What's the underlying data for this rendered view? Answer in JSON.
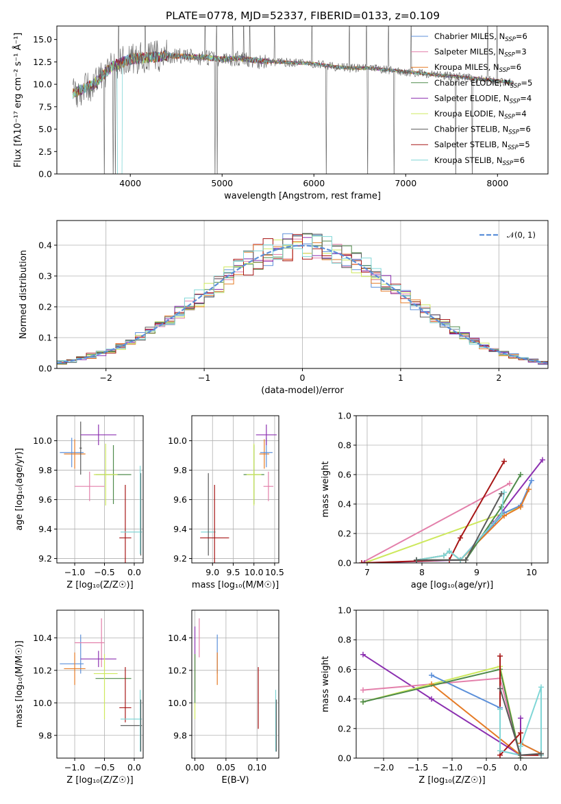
{
  "figure_title": "PLATE=0778, MJD=52337, FIBERID=0133, z=0.109",
  "colors": {
    "Chabrier MILES": "#5b8fd9",
    "Salpeter MILES": "#e37faa",
    "Kroupa MILES": "#e57b26",
    "Chabrier ELODIE": "#4e8a4a",
    "Salpeter ELODIE": "#8b2fb0",
    "Kroupa ELODIE": "#cde85c",
    "Chabrier STELIB": "#5a5a5a",
    "Salpeter STELIB": "#a71616",
    "Kroupa STELIB": "#7fd6d6"
  },
  "chart_data": [
    {
      "id": "spectrum",
      "type": "line",
      "title": "PLATE=0778, MJD=52337, FIBERID=0133, z=0.109",
      "xlabel": "wavelength [Angstrom, rest frame]",
      "ylabel": "Flux [fλ10⁻¹⁷ erg cm⁻² s⁻¹ Å⁻¹]",
      "xlim": [
        3200,
        8550
      ],
      "ylim": [
        0,
        16.5
      ],
      "xticks": [
        4000,
        5000,
        6000,
        7000,
        8000
      ],
      "yticks": [
        0.0,
        2.5,
        5.0,
        7.5,
        10.0,
        12.5,
        15.0
      ],
      "grid": false,
      "legend_position": "upper-right",
      "data_range_x": [
        3375,
        8180
      ],
      "series_mean_profile": {
        "x": [
          3375,
          3600,
          3800,
          4000,
          4200,
          4400,
          4600,
          4800,
          5000,
          5200,
          5400,
          5600,
          5800,
          6000,
          6200,
          6400,
          6600,
          6800,
          7000,
          7200,
          7400,
          7600,
          7800,
          8000,
          8180
        ],
        "y": [
          9.0,
          10.0,
          12.0,
          12.8,
          13.0,
          13.2,
          13.1,
          13.0,
          12.8,
          12.9,
          12.6,
          12.5,
          12.4,
          12.3,
          12.0,
          11.8,
          11.8,
          11.6,
          11.4,
          11.2,
          11.0,
          10.8,
          10.6,
          10.4,
          10.2
        ]
      },
      "legend": [
        {
          "model": "Chabrier MILES",
          "label": "Chabrier MILES, N",
          "sub": "SSP",
          "suffix": "=6"
        },
        {
          "model": "Salpeter MILES",
          "label": "Salpeter MILES, N",
          "sub": "SSP",
          "suffix": "=3"
        },
        {
          "model": "Kroupa MILES",
          "label": "Kroupa MILES, N",
          "sub": "SSP",
          "suffix": "=6"
        },
        {
          "model": "Chabrier ELODIE",
          "label": "Chabrier ELODIE, N",
          "sub": "SSP",
          "suffix": "=5"
        },
        {
          "model": "Salpeter ELODIE",
          "label": "Salpeter ELODIE, N",
          "sub": "SSP",
          "suffix": "=4"
        },
        {
          "model": "Kroupa ELODIE",
          "label": "Kroupa ELODIE, N",
          "sub": "SSP",
          "suffix": "=4"
        },
        {
          "model": "Chabrier STELIB",
          "label": "Chabrier STELIB, N",
          "sub": "SSP",
          "suffix": "=6"
        },
        {
          "model": "Salpeter STELIB",
          "label": "Salpeter STELIB, N",
          "sub": "SSP",
          "suffix": "=5"
        },
        {
          "model": "Kroupa STELIB",
          "label": "Kroupa STELIB, N",
          "sub": "SSP",
          "suffix": "=6"
        }
      ]
    },
    {
      "id": "residuals",
      "type": "step",
      "xlabel": "(data-model)/error",
      "ylabel": "Normed distribution",
      "xlim": [
        -2.5,
        2.5
      ],
      "ylim": [
        0,
        0.48
      ],
      "xticks": [
        -2,
        -1,
        0,
        1,
        2
      ],
      "yticks": [
        0.0,
        0.1,
        0.2,
        0.3,
        0.4
      ],
      "grid": true,
      "legend_position": "upper-right",
      "gaussian_label": "𝒩(0, 1)",
      "gaussian_color": "#5b8fd9",
      "bin_width": 0.1
    },
    {
      "id": "age-Z",
      "type": "errorbar",
      "xlabel": "Z [log₁₀(Z/Z☉)]",
      "ylabel": "age  [log₁₀(age/yr)]",
      "xlim": [
        -1.3,
        0.15
      ],
      "ylim": [
        9.17,
        10.17
      ],
      "xticks": [
        -1.0,
        -0.5,
        0.0
      ],
      "yticks": [
        9.2,
        9.4,
        9.6,
        9.8,
        10.0
      ],
      "grid": true,
      "points": [
        {
          "model": "Chabrier MILES",
          "x": -1.05,
          "xerr": 0.2,
          "y": 9.92,
          "yerr": 0.1
        },
        {
          "model": "Kroupa MILES",
          "x": -1.0,
          "xerr": 0.18,
          "y": 9.91,
          "yerr": 0.1
        },
        {
          "model": "Salpeter MILES",
          "x": -0.75,
          "xerr": 0.25,
          "y": 9.69,
          "yerr": 0.1
        },
        {
          "model": "Chabrier STELIB",
          "x": -0.9,
          "xerr": 0.02,
          "y": 9.95,
          "yerr": 0.18
        },
        {
          "model": "Salpeter ELODIE",
          "x": -0.6,
          "xerr": 0.3,
          "y": 10.04,
          "yerr": 0.07
        },
        {
          "model": "Chabrier ELODIE",
          "x": -0.35,
          "xerr": 0.3,
          "y": 9.77,
          "yerr": 0.2
        },
        {
          "model": "Kroupa ELODIE",
          "x": -0.48,
          "xerr": 0.2,
          "y": 9.77,
          "yerr": 0.21
        },
        {
          "model": "Salpeter STELIB",
          "x": -0.15,
          "xerr": 0.1,
          "y": 9.34,
          "yerr": 0.36
        },
        {
          "model": "Kroupa STELIB",
          "x": -0.05,
          "xerr": 0.18,
          "y": 9.38,
          "yerr": 0.0
        },
        {
          "model": "Chabrier STELIB",
          "x": 0.11,
          "xerr": 0.0,
          "y": 9.5,
          "yerr": 0.28
        },
        {
          "model": "Kroupa STELIB",
          "x": 0.1,
          "xerr": 0.0,
          "y": 9.53,
          "yerr": 0.3
        }
      ]
    },
    {
      "id": "age-mass",
      "type": "errorbar",
      "xlabel": "mass [log₁₀(M/M☉)]",
      "ylabel": "",
      "xlim": [
        8.5,
        10.6
      ],
      "ylim": [
        9.17,
        10.17
      ],
      "xticks": [
        9.0,
        9.5,
        10.0,
        10.5
      ],
      "yticks": [
        9.2,
        9.4,
        9.6,
        9.8,
        10.0
      ],
      "grid": true,
      "points": [
        {
          "model": "Kroupa STELIB",
          "x": 8.9,
          "xerr": 0.18,
          "y": 9.38,
          "yerr": 0.0
        },
        {
          "model": "Chabrier STELIB",
          "x": 8.9,
          "xerr": 0.0,
          "y": 9.5,
          "yerr": 0.28
        },
        {
          "model": "Salpeter STELIB",
          "x": 9.05,
          "xerr": 0.35,
          "y": 9.34,
          "yerr": 0.36
        },
        {
          "model": "Chabrier ELODIE",
          "x": 10.0,
          "xerr": 0.25,
          "y": 9.77,
          "yerr": 0.2
        },
        {
          "model": "Kroupa ELODIE",
          "x": 10.0,
          "xerr": 0.18,
          "y": 9.77,
          "yerr": 0.21
        },
        {
          "model": "Kroupa MILES",
          "x": 10.25,
          "xerr": 0.12,
          "y": 9.91,
          "yerr": 0.1
        },
        {
          "model": "Chabrier MILES",
          "x": 10.3,
          "xerr": 0.15,
          "y": 9.92,
          "yerr": 0.1
        },
        {
          "model": "Salpeter ELODIE",
          "x": 10.3,
          "xerr": 0.25,
          "y": 10.04,
          "yerr": 0.07
        },
        {
          "model": "Salpeter MILES",
          "x": 10.35,
          "xerr": 0.12,
          "y": 9.69,
          "yerr": 0.1
        }
      ]
    },
    {
      "id": "massweight-age",
      "type": "line",
      "xlabel": "age  [log₁₀(age/yr)]",
      "ylabel": "mass weight",
      "xlim": [
        6.8,
        10.3
      ],
      "ylim": [
        0,
        1.0
      ],
      "xticks": [
        7,
        8,
        9,
        10
      ],
      "yticks": [
        0.0,
        0.2,
        0.4,
        0.6,
        0.8,
        1.0
      ],
      "grid": true,
      "series": [
        {
          "model": "Salpeter MILES",
          "x": [
            6.9,
            9.6
          ],
          "y": [
            0.0,
            0.54
          ]
        },
        {
          "model": "Kroupa ELODIE",
          "x": [
            6.95,
            9.8
          ],
          "y": [
            0.0,
            0.38
          ]
        },
        {
          "model": "Salpeter ELODIE",
          "x": [
            6.95,
            8.7,
            9.3,
            10.2
          ],
          "y": [
            0.0,
            0.02,
            0.27,
            0.7
          ]
        },
        {
          "model": "Salpeter STELIB",
          "x": [
            6.9,
            8.5,
            8.7,
            9.5
          ],
          "y": [
            0.0,
            0.02,
            0.17,
            0.69
          ]
        },
        {
          "model": "Chabrier MILES",
          "x": [
            7.9,
            8.4,
            8.5,
            8.7,
            9.5,
            9.8,
            10.0
          ],
          "y": [
            0.02,
            0.05,
            0.08,
            0.02,
            0.34,
            0.39,
            0.56
          ]
        },
        {
          "model": "Kroupa MILES",
          "x": [
            7.9,
            8.4,
            8.5,
            8.7,
            9.5,
            9.8,
            9.95
          ],
          "y": [
            0.02,
            0.05,
            0.08,
            0.02,
            0.32,
            0.38,
            0.5
          ]
        },
        {
          "model": "Chabrier ELODIE",
          "x": [
            7.9,
            8.8,
            9.45,
            9.8
          ],
          "y": [
            0.02,
            0.02,
            0.38,
            0.6
          ]
        },
        {
          "model": "Kroupa STELIB",
          "x": [
            7.9,
            8.4,
            8.5,
            8.7,
            9.45,
            9.5
          ],
          "y": [
            0.02,
            0.05,
            0.08,
            0.02,
            0.33,
            0.48
          ]
        },
        {
          "model": "Chabrier STELIB",
          "x": [
            7.9,
            8.8,
            9.45
          ],
          "y": [
            0.02,
            0.02,
            0.47
          ]
        }
      ]
    },
    {
      "id": "mass-Z",
      "type": "errorbar",
      "xlabel": "Z [log₁₀(Z/Z☉)]",
      "ylabel": "mass [log₁₀(M/M☉)]",
      "xlim": [
        -1.3,
        0.15
      ],
      "ylim": [
        9.66,
        10.57
      ],
      "xticks": [
        -1.0,
        -0.5,
        0.0
      ],
      "yticks": [
        9.8,
        10.0,
        10.2,
        10.4
      ],
      "grid": true,
      "points": [
        {
          "model": "Chabrier MILES",
          "x": -1.05,
          "xerr": 0.2,
          "y": 10.24,
          "yerr": 0.0
        },
        {
          "model": "Chabrier MILES",
          "x": -0.9,
          "xerr": 0.0,
          "y": 10.3,
          "yerr": 0.12
        },
        {
          "model": "Kroupa MILES",
          "x": -1.0,
          "xerr": 0.18,
          "y": 10.21,
          "yerr": 0.1
        },
        {
          "model": "Salpeter MILES",
          "x": -0.75,
          "xerr": 0.25,
          "y": 10.37,
          "yerr": 0.0
        },
        {
          "model": "Salpeter MILES",
          "x": -0.55,
          "xerr": 0.0,
          "y": 10.37,
          "yerr": 0.15
        },
        {
          "model": "Salpeter ELODIE",
          "x": -0.6,
          "xerr": 0.3,
          "y": 10.27,
          "yerr": 0.05
        },
        {
          "model": "Chabrier ELODIE",
          "x": -0.35,
          "xerr": 0.3,
          "y": 10.15,
          "yerr": 0.0
        },
        {
          "model": "Kroupa ELODIE",
          "x": -0.48,
          "xerr": 0.2,
          "y": 10.18,
          "yerr": 0.0
        },
        {
          "model": "Kroupa ELODIE",
          "x": -0.5,
          "xerr": 0.0,
          "y": 10.1,
          "yerr": 0.2
        },
        {
          "model": "Salpeter STELIB",
          "x": -0.15,
          "xerr": 0.1,
          "y": 9.97,
          "yerr": 0.0
        },
        {
          "model": "Salpeter STELIB",
          "x": -0.15,
          "xerr": 0.0,
          "y": 10.05,
          "yerr": 0.17
        },
        {
          "model": "Kroupa STELIB",
          "x": -0.05,
          "xerr": 0.18,
          "y": 9.9,
          "yerr": 0.0
        },
        {
          "model": "Chabrier STELIB",
          "x": -0.05,
          "xerr": 0.18,
          "y": 9.86,
          "yerr": 0.0
        },
        {
          "model": "Kroupa STELIB",
          "x": 0.1,
          "xerr": 0.0,
          "y": 9.89,
          "yerr": 0.19
        },
        {
          "model": "Chabrier STELIB",
          "x": 0.11,
          "xerr": 0.0,
          "y": 9.86,
          "yerr": 0.16
        }
      ]
    },
    {
      "id": "mass-EBV",
      "type": "errorbar",
      "xlabel": "E(B-V)",
      "ylabel": "",
      "xlim": [
        -0.005,
        0.135
      ],
      "ylim": [
        9.66,
        10.57
      ],
      "xticks": [
        0.0,
        0.05,
        0.1
      ],
      "yticks": [
        9.8,
        10.0,
        10.2,
        10.4
      ],
      "grid": true,
      "points": [
        {
          "model": "Salpeter ELODIE",
          "x": 0.0,
          "xerr": 0.0,
          "y": 10.27,
          "yerr": 0.2
        },
        {
          "model": "Kroupa ELODIE",
          "x": 0.0,
          "xerr": 0.0,
          "y": 10.1,
          "yerr": 0.2
        },
        {
          "model": "Chabrier ELODIE",
          "x": 0.0,
          "xerr": 0.0,
          "y": 10.15,
          "yerr": 0.15
        },
        {
          "model": "Salpeter MILES",
          "x": 0.007,
          "xerr": 0.0,
          "y": 10.4,
          "yerr": 0.12
        },
        {
          "model": "Chabrier MILES",
          "x": 0.036,
          "xerr": 0.0,
          "y": 10.3,
          "yerr": 0.12
        },
        {
          "model": "Kroupa MILES",
          "x": 0.036,
          "xerr": 0.0,
          "y": 10.21,
          "yerr": 0.1
        },
        {
          "model": "Salpeter STELIB",
          "x": 0.102,
          "xerr": 0.0,
          "y": 10.03,
          "yerr": 0.19
        },
        {
          "model": "Kroupa STELIB",
          "x": 0.13,
          "xerr": 0.0,
          "y": 9.89,
          "yerr": 0.19
        },
        {
          "model": "Chabrier STELIB",
          "x": 0.131,
          "xerr": 0.0,
          "y": 9.86,
          "yerr": 0.16
        }
      ]
    },
    {
      "id": "massweight-Z",
      "type": "line",
      "xlabel": "Z [log₁₀(Z/Z☉)]",
      "ylabel": "mass weight",
      "xlim": [
        -2.4,
        0.4
      ],
      "ylim": [
        0,
        1.0
      ],
      "xticks": [
        -2.0,
        -1.5,
        -1.0,
        -0.5,
        0.0
      ],
      "yticks": [
        0.0,
        0.2,
        0.4,
        0.6,
        0.8,
        1.0
      ],
      "grid": true,
      "series": [
        {
          "model": "Salpeter ELODIE",
          "x": [
            -2.3,
            -1.3,
            0.0,
            0.0
          ],
          "y": [
            0.7,
            0.4,
            0.02,
            0.27
          ]
        },
        {
          "model": "Salpeter MILES",
          "x": [
            -2.3,
            -0.3,
            0.0
          ],
          "y": [
            0.46,
            0.54,
            0.0
          ]
        },
        {
          "model": "Kroupa ELODIE",
          "x": [
            -2.3,
            -0.3,
            0.0
          ],
          "y": [
            0.38,
            0.62,
            0.0
          ]
        },
        {
          "model": "Chabrier MILES",
          "x": [
            -1.3,
            -0.3,
            -0.3,
            0.0,
            0.0,
            0.3
          ],
          "y": [
            0.56,
            0.34,
            0.05,
            0.02,
            0.1,
            0.03
          ]
        },
        {
          "model": "Kroupa MILES",
          "x": [
            -1.3,
            0.0,
            0.0,
            0.3
          ],
          "y": [
            0.5,
            0.02,
            0.1,
            0.03
          ]
        },
        {
          "model": "Chabrier ELODIE",
          "x": [
            -2.3,
            -0.3,
            0.0
          ],
          "y": [
            0.38,
            0.6,
            0.0
          ]
        },
        {
          "model": "Salpeter STELIB",
          "x": [
            -0.3,
            -0.3,
            0.0,
            0.0,
            0.3
          ],
          "y": [
            0.69,
            0.02,
            0.17,
            0.02,
            0.02
          ]
        },
        {
          "model": "Kroupa STELIB",
          "x": [
            -0.3,
            -0.3,
            0.0,
            0.0,
            0.3,
            0.3
          ],
          "y": [
            0.33,
            0.05,
            0.02,
            0.08,
            0.48,
            0.02
          ]
        },
        {
          "model": "Chabrier STELIB",
          "x": [
            -0.3,
            0.0,
            0.3
          ],
          "y": [
            0.47,
            0.02,
            0.03
          ]
        }
      ]
    }
  ]
}
